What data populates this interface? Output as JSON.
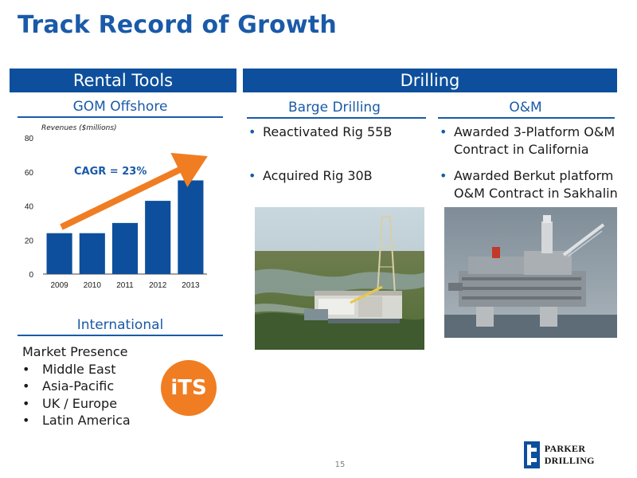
{
  "title": "Track Record of Growth",
  "rental": {
    "header": "Rental Tools",
    "gom_title": "GOM Offshore",
    "international_title": "International",
    "market_presence_label": "Market Presence",
    "markets": [
      "Middle East",
      "Asia-Pacific",
      "UK / Europe",
      "Latin America"
    ],
    "logo_text": "iTS"
  },
  "chart_data": {
    "type": "bar",
    "title": "",
    "ylabel": "Revenues ($millions)",
    "xlabel": "",
    "categories": [
      "2009",
      "2010",
      "2011",
      "2012",
      "2013"
    ],
    "values": [
      24,
      24,
      30,
      43,
      55
    ],
    "ylim": [
      0,
      80
    ],
    "yticks": [
      "0",
      "20",
      "40",
      "60",
      "80"
    ],
    "annotation": "CAGR = 23%",
    "bar_color": "#0d4f9c",
    "arrow_color": "#f07d22",
    "grid": false
  },
  "drilling": {
    "header": "Drilling",
    "barge": {
      "title": "Barge Drilling",
      "bullets": [
        "Reactivated Rig 55B",
        "Acquired Rig 30B"
      ]
    },
    "om": {
      "title": "O&M",
      "bullets": [
        {
          "line1": "Awarded 3-Platform O&M",
          "line2": "Contract in California"
        },
        {
          "line1": "Awarded Berkut platform",
          "line2": "O&M Contract in Sakhalin"
        }
      ]
    }
  },
  "footer": {
    "page_number": "15",
    "company": "Parker Drilling",
    "company_display": "PARKER DRILLING"
  },
  "colors": {
    "brand_blue": "#0d4f9c",
    "accent_blue": "#1a5aa8",
    "orange": "#f07d22"
  }
}
